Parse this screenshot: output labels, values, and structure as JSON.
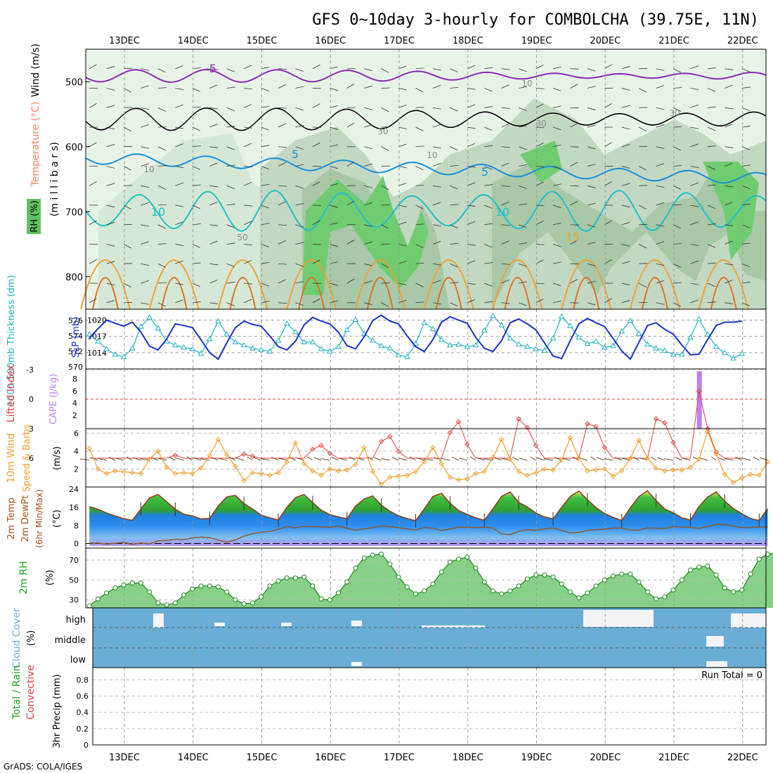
{
  "chart_data": {
    "type": "meteogram",
    "title": "GFS 0~10day 3-hourly for COMBOLCHA (39.75E, 11N)",
    "footer": "GrADS: COLA/IGES",
    "dates": [
      "13DEC",
      "14DEC",
      "15DEC",
      "16DEC",
      "17DEC",
      "18DEC",
      "19DEC",
      "20DEC",
      "21DEC",
      "22DEC"
    ],
    "panels": {
      "upper_air": {
        "ylabel": "(m i l l i b a r s)",
        "side_labels": [
          "Wind (m/s)",
          "Temperature (°C)",
          "RH (%)"
        ],
        "pressure_ticks": [
          "500",
          "600",
          "700",
          "800"
        ],
        "pressure_range": [
          450,
          850
        ],
        "temp_contour_labels": [
          "-5",
          "5",
          "10",
          "15",
          "5",
          "10"
        ],
        "rh_contour_labels": [
          "10",
          "30",
          "50",
          "10",
          "30",
          "30",
          "10"
        ]
      },
      "thickness_slp": {
        "left_label": "1000-500mb Thickness (dm)",
        "right_label": "SLP (mb)",
        "thickness_ticks": [
          "576",
          "574",
          "572",
          "570"
        ],
        "thickness_range": [
          570,
          577
        ],
        "slp_ticks": [
          "1020",
          "1017",
          "1014"
        ],
        "slp_range": [
          1011,
          1022
        ],
        "thickness": [
          574.2,
          573.3,
          572.3,
          571.6,
          571.3,
          572.4,
          575.2,
          576.4,
          575.0,
          573.3,
          572.8,
          572.5,
          572.3,
          571.7,
          573.6,
          575.9,
          574.2,
          573.2,
          572.8,
          572.4,
          572.2,
          572.0,
          573.4,
          575.6,
          574.5,
          573.2,
          573.2,
          572.3,
          572.0,
          572.6,
          574.8,
          576.1,
          574.3,
          573.4,
          572.7,
          572.4,
          571.5,
          571.3,
          573.0,
          575.7,
          574.9,
          573.5,
          572.8,
          572.9,
          572.6,
          572.8,
          574.7,
          576.6,
          575.4,
          573.7,
          572.9,
          572.6,
          572.3,
          572.1,
          573.7,
          576.5,
          575.3,
          573.8,
          573.0,
          573.3,
          572.5,
          572.7,
          574.6,
          576.0,
          574.3,
          572.9,
          572.4,
          572.1,
          571.6,
          571.6,
          573.8,
          576.2,
          574.2,
          572.6,
          571.8,
          571.1,
          571.7
        ],
        "slp": [
          1016.7,
          1018.4,
          1020.0,
          1019.4,
          1018.9,
          1019.6,
          1017.8,
          1015.2,
          1014.5,
          1016.5,
          1019.3,
          1019.0,
          1018.6,
          1016.4,
          1014.0,
          1012.8,
          1015.8,
          1018.6,
          1019.8,
          1019.2,
          1018.9,
          1017.1,
          1015.1,
          1014.5,
          1016.1,
          1019.1,
          1020.5,
          1019.8,
          1019.3,
          1017.8,
          1015.3,
          1014.7,
          1016.9,
          1019.9,
          1020.9,
          1019.8,
          1019.3,
          1017.1,
          1015.1,
          1014.2,
          1016.4,
          1019.6,
          1020.6,
          1020.0,
          1019.4,
          1016.8,
          1014.8,
          1014.2,
          1016.2,
          1019.5,
          1020.2,
          1019.3,
          1018.2,
          1015.8,
          1013.4,
          1012.9,
          1016.2,
          1019.3,
          1020.3,
          1019.5,
          1018.8,
          1016.6,
          1014.3,
          1012.8,
          1015.9,
          1019.0,
          1019.5,
          1018.3,
          1017.4,
          1015.4,
          1013.6,
          1013.7,
          1016.4,
          1019.0,
          1019.6,
          1019.6,
          1019.8
        ]
      },
      "cape_li": {
        "left_label": "Lifted Index",
        "right_label": "CAPE (J/kg)",
        "li_ticks": [
          "-3",
          "0",
          "3",
          "6"
        ],
        "cape_ticks": [
          "8",
          "6",
          "4",
          "2"
        ],
        "cape_spike": {
          "step": 71,
          "value": 9.5
        },
        "li": [
          6,
          6,
          6,
          6,
          6,
          6,
          6,
          6,
          6,
          6,
          5.7,
          6,
          6,
          6,
          6,
          6,
          6,
          6,
          5.6,
          5.8,
          6,
          6,
          6,
          6,
          6,
          6,
          5.1,
          4.7,
          5.5,
          6,
          6,
          6,
          6,
          6,
          4.3,
          3.8,
          5.3,
          6,
          6,
          6,
          6,
          6,
          3.4,
          2.3,
          4.6,
          6,
          6,
          6,
          6,
          6,
          2.0,
          2.9,
          4.7,
          6,
          6,
          6,
          6,
          6,
          2.5,
          2.8,
          4.9,
          6,
          6,
          6,
          6,
          6,
          2.0,
          2.4,
          4.4,
          6,
          6,
          -0.8,
          3.0,
          5.4,
          6,
          6,
          6
        ]
      },
      "wind10m": {
        "label": "10m Wind Speed & Barbs",
        "units": "(m/s)",
        "ticks": [
          "6",
          "4",
          "2"
        ],
        "range": [
          0,
          6.5
        ],
        "speed": [
          4.3,
          2.0,
          1.5,
          1.8,
          1.7,
          1.6,
          1.5,
          3.1,
          4.0,
          2.2,
          1.5,
          1.6,
          1.5,
          2.1,
          3.5,
          5.3,
          3.6,
          2.3,
          0.7,
          1.6,
          1.5,
          1.3,
          1.6,
          2.8,
          4.9,
          2.6,
          1.8,
          1.3,
          2.0,
          1.8,
          1.9,
          2.5,
          4.4,
          1.7,
          0.3,
          1.1,
          1.2,
          1.3,
          1.7,
          2.8,
          4.4,
          2.6,
          1.1,
          0.8,
          0.9,
          1.5,
          1.7,
          3.3,
          5.3,
          3.1,
          1.7,
          1.3,
          1.6,
          2.0,
          1.9,
          3.0,
          5.5,
          3.2,
          1.8,
          1.9,
          2.0,
          1.2,
          1.8,
          3.2,
          5.2,
          3.2,
          2.1,
          1.8,
          1.9,
          1.9,
          2.2,
          3.1,
          6.2,
          3.7,
          1.4,
          0.5,
          1.0,
          1.4,
          1.3,
          2.8
        ]
      },
      "temp2m": {
        "labels": [
          "2m Temp",
          "2m DewPt",
          "(6hr Min/Max)"
        ],
        "units": "(°C)",
        "ticks": [
          "24",
          "16",
          "8",
          "0"
        ],
        "range": [
          -2,
          25
        ],
        "temp": [
          16.3,
          15.2,
          13.5,
          12.2,
          11.0,
          10.3,
          15.3,
          20.2,
          21.7,
          18.5,
          15.2,
          13.0,
          12.2,
          10.9,
          11.1,
          16.6,
          20.6,
          21.3,
          17.7,
          15.3,
          12.6,
          11.4,
          10.4,
          16.0,
          20.3,
          21.7,
          18.1,
          14.8,
          12.8,
          11.8,
          11.0,
          16.6,
          19.7,
          21.1,
          17.0,
          14.3,
          12.3,
          11.1,
          10.1,
          15.3,
          20.8,
          22.2,
          17.9,
          14.6,
          12.9,
          11.4,
          10.3,
          15.4,
          20.8,
          22.8,
          18.2,
          16.2,
          13.5,
          11.8,
          10.9,
          16.0,
          20.8,
          23.2,
          19.4,
          15.9,
          13.3,
          11.6,
          10.2,
          15.8,
          20.8,
          23.3,
          19.0,
          15.3,
          13.6,
          11.4,
          10.4,
          16.4,
          20.6,
          22.8,
          18.7,
          15.5,
          13.2,
          11.1,
          10.2,
          15.4
        ],
        "dewpt": [
          0.2,
          0.2,
          -0.2,
          0.1,
          0.5,
          -0.4,
          0.3,
          -0.1,
          1.2,
          1.4,
          1.9,
          1.8,
          2.5,
          2.9,
          2.6,
          1.6,
          0.7,
          1.6,
          3.3,
          4.4,
          5.0,
          5.4,
          6.3,
          7.5,
          6.9,
          7.7,
          7.5,
          7.4,
          7.2,
          7.7,
          6.8,
          5.9,
          6.5,
          7.1,
          7.8,
          7.5,
          7.0,
          6.5,
          6.0,
          7.1,
          6.8,
          5.8,
          6.5,
          7.2,
          7.2,
          7.1,
          7.2,
          6.9,
          4.3,
          4.0,
          5.4,
          6.2,
          5.8,
          6.5,
          6.9,
          5.8,
          4.7,
          4.9,
          5.9,
          6.1,
          6.4,
          6.8,
          6.9,
          5.9,
          5.9,
          6.9,
          6.8,
          6.7,
          7.5,
          7.3,
          7.2,
          6.7,
          7.6,
          8.5,
          8.4,
          7.8,
          7.1,
          7.1,
          7.3,
          7.4
        ]
      },
      "rh2m": {
        "label": "2m RH",
        "units": "(%)",
        "ticks": [
          "70",
          "50",
          "30"
        ],
        "range": [
          22,
          82
        ],
        "rh": [
          24,
          31,
          37,
          42,
          45,
          47,
          47,
          38,
          27,
          25,
          27,
          35,
          41,
          44,
          44,
          43,
          38,
          30,
          26,
          27,
          33,
          44,
          49,
          52,
          52,
          53,
          44,
          31,
          30,
          37,
          48,
          62,
          72,
          75,
          76,
          66,
          53,
          43,
          36,
          39,
          46,
          58,
          68,
          71,
          73,
          62,
          48,
          39,
          36,
          39,
          44,
          51,
          55,
          55,
          53,
          46,
          38,
          32,
          37,
          44,
          50,
          54,
          56,
          56,
          48,
          38,
          31,
          33,
          40,
          50,
          60,
          63,
          64,
          55,
          42,
          38,
          40,
          56,
          71,
          76,
          77,
          55
        ]
      },
      "cloud": {
        "label": "Cloud Cover",
        "units": "(%)",
        "levels": [
          "high",
          "middle",
          "low"
        ]
      },
      "precip": {
        "label": "3hr Precip (mm)",
        "side_labels": [
          "Total / Rain",
          "Convective"
        ],
        "ticks": [
          "0.8",
          "0.6",
          "0.4",
          "0.2",
          "0"
        ],
        "range": [
          0,
          0.95
        ],
        "run_total": "Run Total = 0",
        "values": []
      }
    },
    "colors": {
      "slp": "#1a30c8",
      "thickness": "#20b2c0",
      "li": "#e04040",
      "cape": "#c080f0",
      "wind": "#f0a030",
      "temp_line": "#8b3a1a",
      "dewpt": "#8b5a2b",
      "rh_line": "#1a8a1a",
      "cloud": "#6aaed6"
    }
  }
}
